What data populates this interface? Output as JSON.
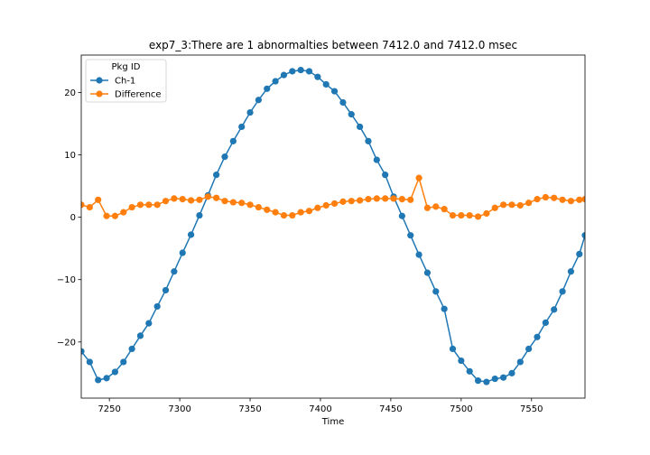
{
  "chart_data": {
    "type": "line",
    "title": "exp7_3:There are 1 abnormalties between 7412.0 and 7412.0 msec",
    "xlabel": "Time",
    "ylabel": "",
    "xlim": [
      7230,
      7588
    ],
    "ylim": [
      -29,
      26
    ],
    "xticks": [
      7250,
      7300,
      7350,
      7400,
      7450,
      7500,
      7550
    ],
    "yticks": [
      -20,
      -10,
      0,
      10,
      20
    ],
    "ytick_labels": [
      "−20",
      "−10",
      "0",
      "10",
      "20"
    ],
    "grid": false,
    "legend": {
      "title": "Pkg ID",
      "placement": "top-left"
    },
    "series": [
      {
        "name": "Ch-1",
        "color": "#1f77b4",
        "x": [
          7230,
          7236,
          7242,
          7248,
          7254,
          7260,
          7266,
          7272,
          7278,
          7284,
          7290,
          7296,
          7302,
          7308,
          7314,
          7320,
          7326,
          7332,
          7338,
          7344,
          7350,
          7356,
          7362,
          7368,
          7374,
          7380,
          7386,
          7392,
          7398,
          7404,
          7410,
          7416,
          7422,
          7428,
          7434,
          7440,
          7446,
          7452,
          7458,
          7464,
          7470,
          7476,
          7482,
          7488,
          7494,
          7500,
          7506,
          7512,
          7518,
          7524,
          7530,
          7536,
          7542,
          7548,
          7554,
          7560,
          7566,
          7572,
          7578,
          7584,
          7588
        ],
        "y": [
          -21.5,
          -23.2,
          -26.1,
          -25.8,
          -24.8,
          -23.2,
          -21.1,
          -19.0,
          -17.0,
          -14.3,
          -11.7,
          -8.7,
          -5.7,
          -2.8,
          0.3,
          3.5,
          6.8,
          9.7,
          12.2,
          14.5,
          16.8,
          18.8,
          20.6,
          21.8,
          22.8,
          23.4,
          23.6,
          23.4,
          22.5,
          21.3,
          20.2,
          18.4,
          16.5,
          14.5,
          12.2,
          9.2,
          6.8,
          3.3,
          0.2,
          -2.9,
          -6.0,
          -8.9,
          -11.9,
          -14.7,
          -21.1,
          -23.0,
          -24.7,
          -26.2,
          -26.4,
          -25.9,
          -25.7,
          -25.0,
          -23.2,
          -21.1,
          -19.2,
          -16.9,
          -14.8,
          -11.9,
          -8.7,
          -5.9,
          -2.9
        ]
      },
      {
        "name": "Difference",
        "color": "#ff7f0e",
        "x": [
          7230,
          7236,
          7242,
          7248,
          7254,
          7260,
          7266,
          7272,
          7278,
          7284,
          7290,
          7296,
          7302,
          7308,
          7314,
          7320,
          7326,
          7332,
          7338,
          7344,
          7350,
          7356,
          7362,
          7368,
          7374,
          7380,
          7386,
          7392,
          7398,
          7404,
          7410,
          7416,
          7422,
          7428,
          7434,
          7440,
          7446,
          7452,
          7458,
          7464,
          7470,
          7476,
          7482,
          7488,
          7494,
          7500,
          7506,
          7512,
          7518,
          7524,
          7530,
          7536,
          7542,
          7548,
          7554,
          7560,
          7566,
          7572,
          7578,
          7584,
          7588
        ],
        "y": [
          2.0,
          1.6,
          2.8,
          0.2,
          0.2,
          0.8,
          1.6,
          2.0,
          2.0,
          2.0,
          2.6,
          3.0,
          2.9,
          2.7,
          2.8,
          3.3,
          3.1,
          2.6,
          2.4,
          2.3,
          2.0,
          1.6,
          1.2,
          0.8,
          0.3,
          0.3,
          0.8,
          1.0,
          1.5,
          1.9,
          2.2,
          2.5,
          2.6,
          2.7,
          2.9,
          3.0,
          3.0,
          3.0,
          2.9,
          2.8,
          6.3,
          1.5,
          1.7,
          1.3,
          0.3,
          0.3,
          0.3,
          0.1,
          0.6,
          1.5,
          2.0,
          2.0,
          1.9,
          2.3,
          2.9,
          3.2,
          3.1,
          2.8,
          2.6,
          2.8,
          2.9
        ]
      }
    ]
  }
}
